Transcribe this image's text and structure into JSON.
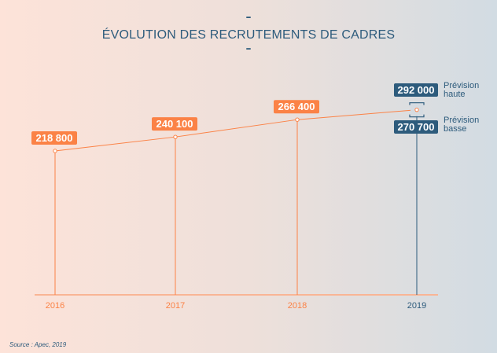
{
  "chart_data": {
    "type": "line",
    "title": "ÉVOLUTION DES RECRUTEMENTS DE CADRES",
    "categories": [
      "2016",
      "2017",
      "2018",
      "2019"
    ],
    "values": [
      218800,
      240100,
      266400,
      null
    ],
    "labels": [
      "218 800",
      "240 100",
      "266 400"
    ],
    "forecast_2019": {
      "high": 292000,
      "high_label": "292 000",
      "high_note_1": "Prévision",
      "high_note_2": "haute",
      "low": 270700,
      "low_label": "270 700",
      "low_note_1": "Prévision",
      "low_note_2": "basse"
    },
    "ylim": [
      0,
      300000
    ],
    "xlabel": "",
    "ylabel": "",
    "source": "Source : Apec, 2019",
    "colors": {
      "actual": "#fb8246",
      "forecast": "#2d5b7c",
      "axis": "#f9b595"
    }
  },
  "decor": {
    "dash": "–"
  }
}
